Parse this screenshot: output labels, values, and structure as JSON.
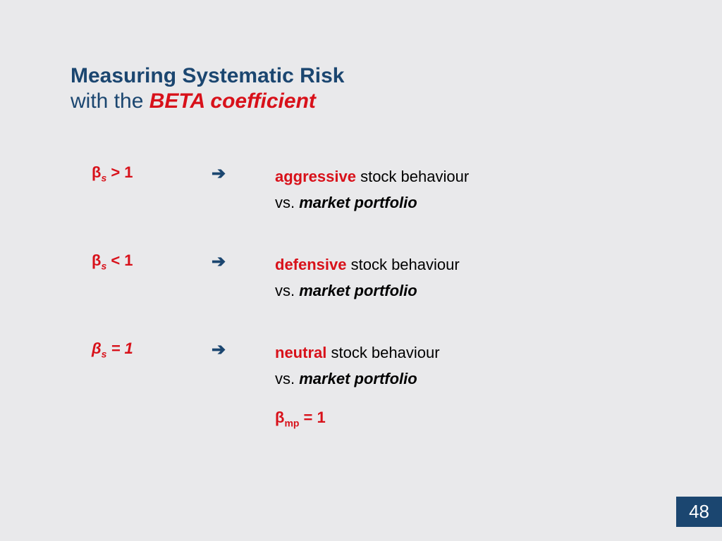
{
  "colors": {
    "background": "#e9e9eb",
    "title_blue": "#1b4670",
    "accent_red": "#d8111a",
    "text_black": "#000000",
    "page_box_bg": "#1b4670",
    "page_box_text": "#ffffff"
  },
  "title": {
    "line1": "Measuring Systematic Risk",
    "line2_prefix": "with the ",
    "line2_em": "BETA",
    "line2_suffix": " coefficient"
  },
  "arrow_glyph": "➔",
  "rows": [
    {
      "beta_symbol": "β",
      "beta_sub": "s",
      "beta_rest": " > 1",
      "keyword": "aggressive",
      "after_keyword": " stock behaviour",
      "line2_prefix": "vs. ",
      "line2_em": "market portfolio"
    },
    {
      "beta_symbol": "β",
      "beta_sub": "s",
      "beta_rest": " < 1",
      "keyword": "defensive",
      "after_keyword": " stock behaviour",
      "line2_prefix": "vs. ",
      "line2_em": "market portfolio"
    },
    {
      "beta_symbol": "β",
      "beta_sub": "s",
      "beta_rest": " = 1",
      "keyword": "neutral",
      "after_keyword": " stock behaviour",
      "line2_prefix": "vs. ",
      "line2_em": "market portfolio",
      "extra_beta_symbol": "β",
      "extra_beta_sub": "mp",
      "extra_beta_rest": " = 1"
    }
  ],
  "page_number": "48"
}
